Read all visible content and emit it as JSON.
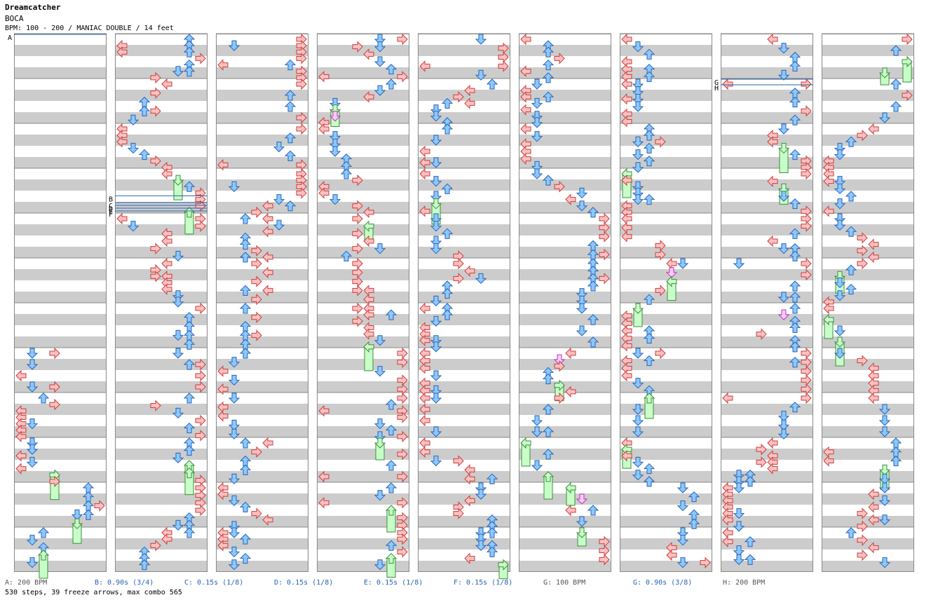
{
  "song": {
    "title": "Dreamcatcher",
    "artist": "BOCA",
    "info": "BPM: 100 - 200 / MANIAC DOUBLE / 14 feet"
  },
  "colors": {
    "stripe": "#cccccc",
    "column_border": "#888888",
    "red_arrow": "#ffc0c0",
    "red_stroke": "#c83c3c",
    "blue_arrow": "#8cc8ff",
    "blue_stroke": "#2864b4",
    "freeze_fill": "#c8ffc8",
    "freeze_stroke": "#3c8c3c",
    "shock_fill": "#ffc8ff",
    "shock_stroke": "#b43cb4",
    "marker_line": "#2a64a8",
    "legend_blue": "#2864b4",
    "legend_gray": "#555555"
  },
  "markers": [
    {
      "label": "A",
      "column": 0,
      "beat": 0.0
    },
    {
      "label": "B",
      "column": 1,
      "beat": 14.4
    },
    {
      "label": "C",
      "column": 1,
      "beat": 15.0
    },
    {
      "label": "D",
      "column": 1,
      "beat": 15.25
    },
    {
      "label": "E",
      "column": 1,
      "beat": 15.5
    },
    {
      "label": "F",
      "column": 1,
      "beat": 15.75
    },
    {
      "label": "G",
      "column": 7,
      "beat": 4.0
    },
    {
      "label": "H",
      "column": 7,
      "beat": 4.5
    }
  ],
  "legend": [
    {
      "key": "a",
      "text": "A: 200 BPM",
      "style": "gray"
    },
    {
      "key": "b",
      "text": "B: 0.90s (3/4)",
      "style": "blue"
    },
    {
      "key": "c",
      "text": "C: 0.15s (1/8)",
      "style": "blue"
    },
    {
      "key": "d",
      "text": "D: 0.15s (1/8)",
      "style": "blue"
    },
    {
      "key": "e",
      "text": "E: 0.15s (1/8)",
      "style": "blue"
    },
    {
      "key": "f",
      "text": "F: 0.15s (1/8)",
      "style": "blue"
    },
    {
      "key": "g",
      "text": "G: 100 BPM",
      "style": "gray"
    },
    {
      "key": "g2",
      "text": "G: 0.90s (3/8)",
      "style": "blue"
    },
    {
      "key": "h",
      "text": "H: 200 BPM",
      "style": "gray"
    }
  ],
  "summary": "530 steps, 39 freeze arrows, max combo 565",
  "chart": {
    "columns": 9,
    "measures_per_column": 12,
    "lanes": 8,
    "seed": 20241
  }
}
